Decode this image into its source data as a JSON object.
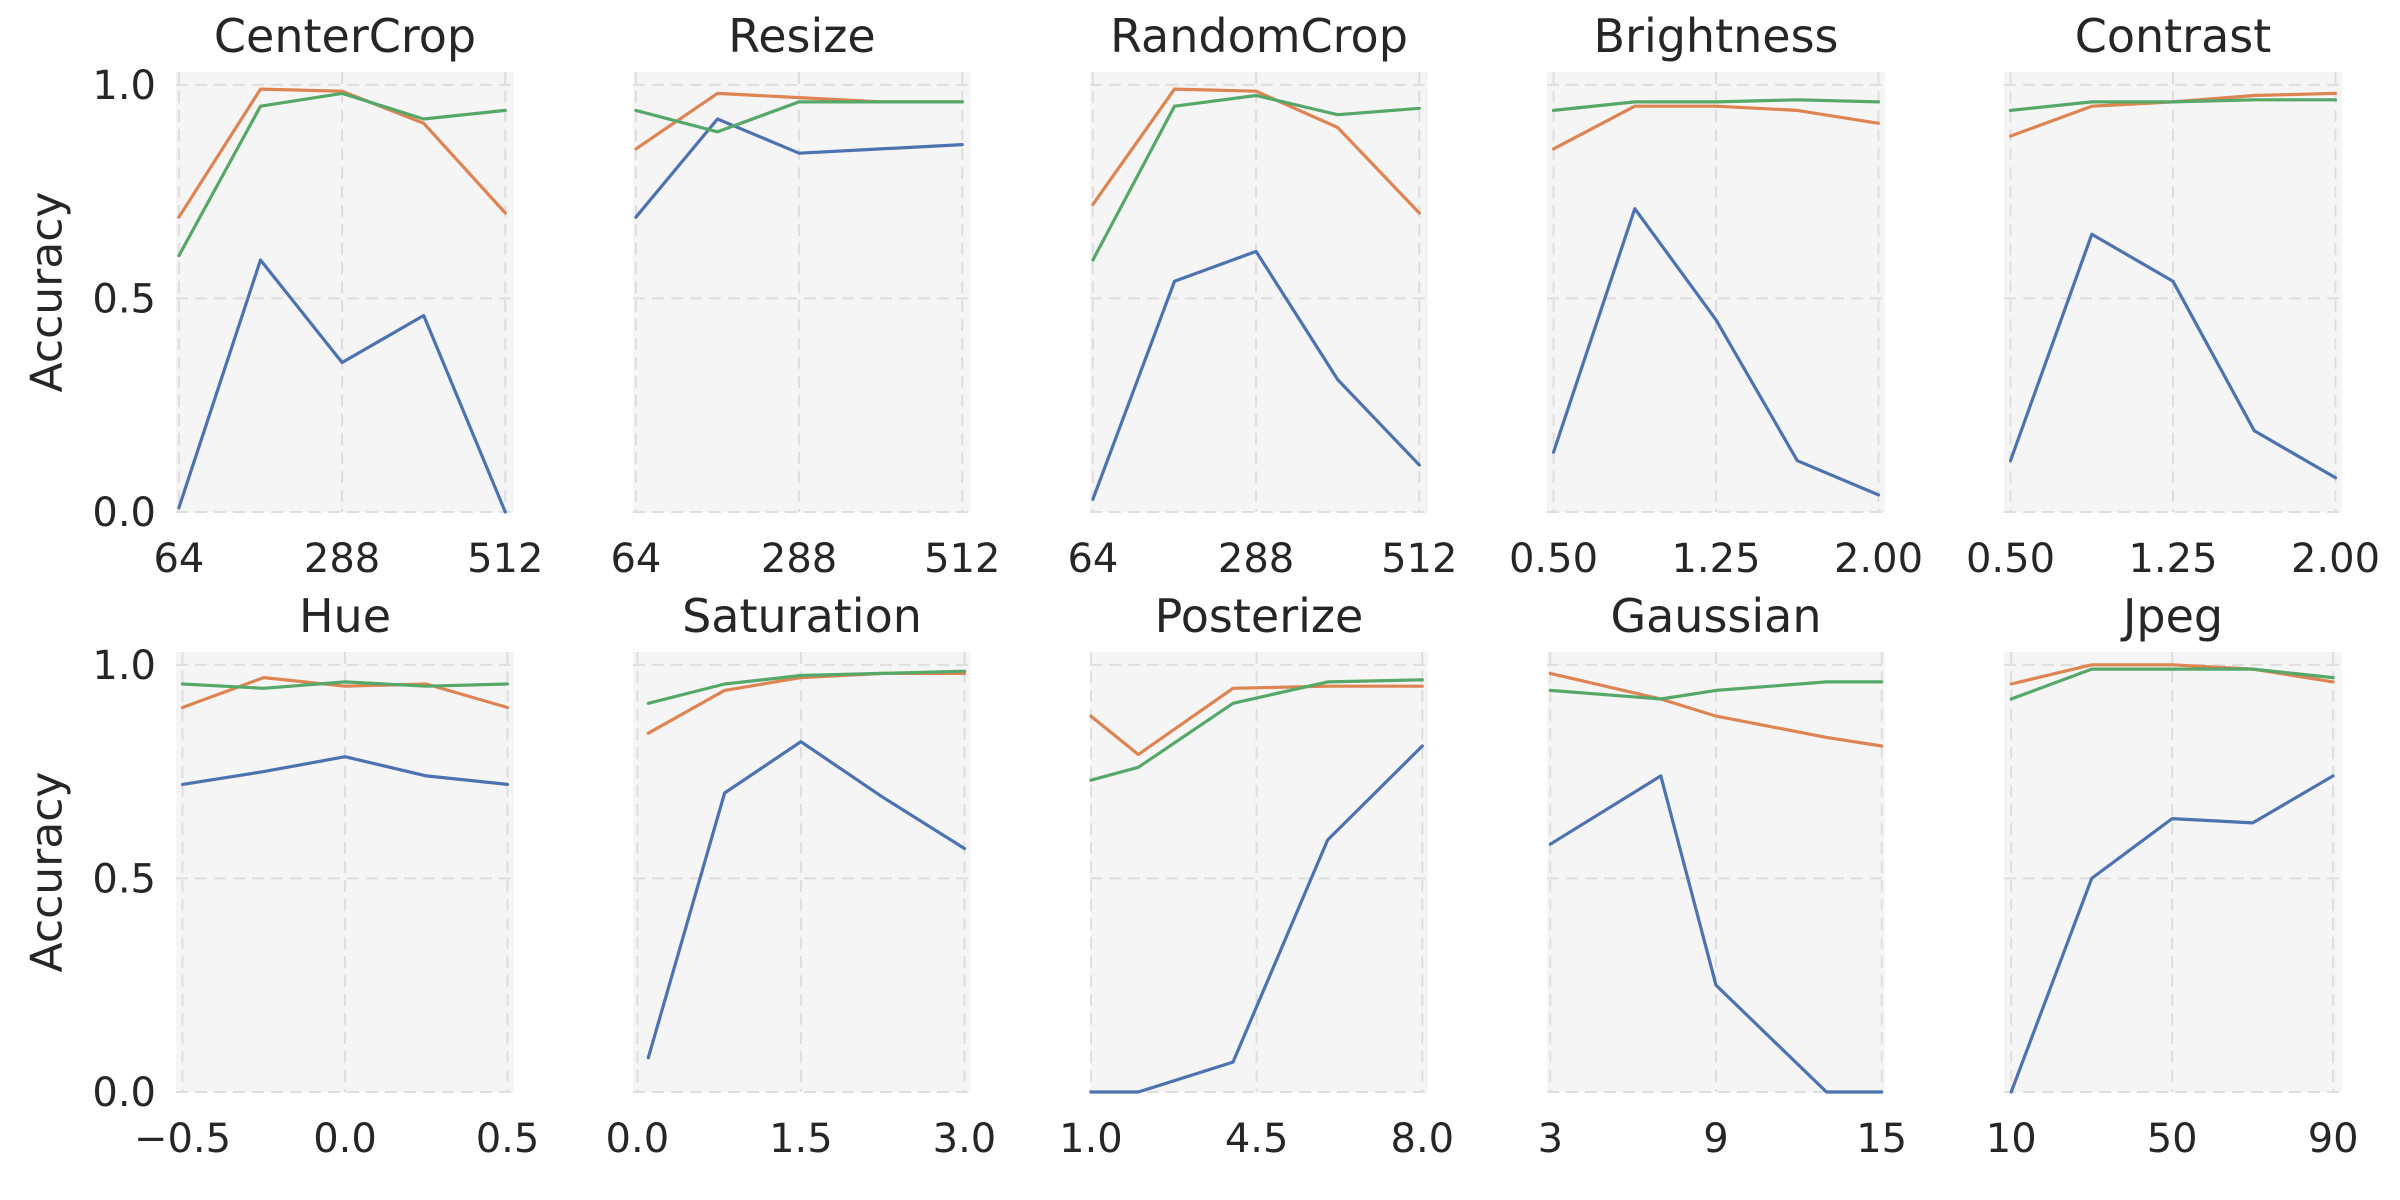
{
  "colors": {
    "series_blue": "#4c72b0",
    "series_orange": "#dd8452",
    "series_green": "#55a868"
  },
  "chart_data": [
    {
      "type": "line",
      "title": "CenterCrop",
      "ylabel": "Accuracy",
      "ylim": [
        0,
        1.03
      ],
      "xlim": [
        60,
        524
      ],
      "xticks": [
        64,
        288,
        512
      ],
      "xtick_labels": [
        "64",
        "288",
        "512"
      ],
      "yticks": [
        0,
        0.5,
        1.0
      ],
      "ytick_labels": [
        "0.0",
        "0.5",
        "1.0"
      ],
      "x": [
        64,
        176,
        288,
        400,
        512
      ],
      "series": [
        {
          "color": "#4c72b0",
          "values": [
            0.01,
            0.59,
            0.35,
            0.46,
            0.0
          ]
        },
        {
          "color": "#dd8452",
          "values": [
            0.69,
            0.99,
            0.985,
            0.91,
            0.7
          ]
        },
        {
          "color": "#55a868",
          "values": [
            0.6,
            0.95,
            0.98,
            0.92,
            0.94
          ]
        }
      ]
    },
    {
      "type": "line",
      "title": "Resize",
      "ylabel": "",
      "ylim": [
        0,
        1.03
      ],
      "xlim": [
        60,
        524
      ],
      "xticks": [
        64,
        288,
        512
      ],
      "xtick_labels": [
        "64",
        "288",
        "512"
      ],
      "yticks": [
        0,
        0.5,
        1.0
      ],
      "ytick_labels": [],
      "x": [
        64,
        176,
        288,
        400,
        512
      ],
      "series": [
        {
          "color": "#4c72b0",
          "values": [
            0.69,
            0.92,
            0.84,
            0.85,
            0.86
          ]
        },
        {
          "color": "#dd8452",
          "values": [
            0.85,
            0.98,
            0.97,
            0.96,
            0.96
          ]
        },
        {
          "color": "#55a868",
          "values": [
            0.94,
            0.89,
            0.96,
            0.96,
            0.96
          ]
        }
      ]
    },
    {
      "type": "line",
      "title": "RandomCrop",
      "ylabel": "",
      "ylim": [
        0,
        1.03
      ],
      "xlim": [
        60,
        524
      ],
      "xticks": [
        64,
        288,
        512
      ],
      "xtick_labels": [
        "64",
        "288",
        "512"
      ],
      "yticks": [
        0,
        0.5,
        1.0
      ],
      "ytick_labels": [],
      "x": [
        64,
        176,
        288,
        400,
        512
      ],
      "series": [
        {
          "color": "#4c72b0",
          "values": [
            0.03,
            0.54,
            0.61,
            0.31,
            0.11
          ]
        },
        {
          "color": "#dd8452",
          "values": [
            0.72,
            0.99,
            0.985,
            0.9,
            0.7
          ]
        },
        {
          "color": "#55a868",
          "values": [
            0.59,
            0.95,
            0.975,
            0.93,
            0.945
          ]
        }
      ]
    },
    {
      "type": "line",
      "title": "Brightness",
      "ylabel": "",
      "ylim": [
        0,
        1.03
      ],
      "xlim": [
        0.47,
        2.03
      ],
      "xticks": [
        0.5,
        1.25,
        2.0
      ],
      "xtick_labels": [
        "0.50",
        "1.25",
        "2.00"
      ],
      "yticks": [
        0,
        0.5,
        1.0
      ],
      "ytick_labels": [],
      "x": [
        0.5,
        0.875,
        1.25,
        1.625,
        2.0
      ],
      "series": [
        {
          "color": "#4c72b0",
          "values": [
            0.14,
            0.71,
            0.45,
            0.12,
            0.04
          ]
        },
        {
          "color": "#dd8452",
          "values": [
            0.85,
            0.95,
            0.95,
            0.94,
            0.91
          ]
        },
        {
          "color": "#55a868",
          "values": [
            0.94,
            0.96,
            0.96,
            0.965,
            0.96
          ]
        }
      ]
    },
    {
      "type": "line",
      "title": "Contrast",
      "ylabel": "",
      "ylim": [
        0,
        1.03
      ],
      "xlim": [
        0.47,
        2.03
      ],
      "xticks": [
        0.5,
        1.25,
        2.0
      ],
      "xtick_labels": [
        "0.50",
        "1.25",
        "2.00"
      ],
      "yticks": [
        0,
        0.5,
        1.0
      ],
      "ytick_labels": [],
      "x": [
        0.5,
        0.875,
        1.25,
        1.625,
        2.0
      ],
      "series": [
        {
          "color": "#4c72b0",
          "values": [
            0.12,
            0.65,
            0.54,
            0.19,
            0.08
          ]
        },
        {
          "color": "#dd8452",
          "values": [
            0.88,
            0.95,
            0.96,
            0.975,
            0.98
          ]
        },
        {
          "color": "#55a868",
          "values": [
            0.94,
            0.96,
            0.96,
            0.965,
            0.965
          ]
        }
      ]
    },
    {
      "type": "line",
      "title": "Hue",
      "ylabel": "Accuracy",
      "ylim": [
        0,
        1.03
      ],
      "xlim": [
        -0.52,
        0.52
      ],
      "xticks": [
        -0.5,
        0.0,
        0.5
      ],
      "xtick_labels": [
        "−0.5",
        "0.0",
        "0.5"
      ],
      "yticks": [
        0,
        0.5,
        1.0
      ],
      "ytick_labels": [
        "0.0",
        "0.5",
        "1.0"
      ],
      "x": [
        -0.5,
        -0.25,
        0.0,
        0.25,
        0.5
      ],
      "series": [
        {
          "color": "#4c72b0",
          "values": [
            0.72,
            0.75,
            0.785,
            0.74,
            0.72
          ]
        },
        {
          "color": "#dd8452",
          "values": [
            0.9,
            0.97,
            0.95,
            0.955,
            0.9
          ]
        },
        {
          "color": "#55a868",
          "values": [
            0.955,
            0.945,
            0.96,
            0.95,
            0.955
          ]
        }
      ]
    },
    {
      "type": "line",
      "title": "Saturation",
      "ylabel": "",
      "ylim": [
        0,
        1.03
      ],
      "xlim": [
        -0.04,
        3.06
      ],
      "xticks": [
        0.0,
        1.5,
        3.0
      ],
      "xtick_labels": [
        "0.0",
        "1.5",
        "3.0"
      ],
      "yticks": [
        0,
        0.5,
        1.0
      ],
      "ytick_labels": [],
      "x": [
        0.1,
        0.8,
        1.5,
        2.25,
        3.0
      ],
      "series": [
        {
          "color": "#4c72b0",
          "values": [
            0.08,
            0.7,
            0.82,
            0.69,
            0.57
          ]
        },
        {
          "color": "#dd8452",
          "values": [
            0.84,
            0.94,
            0.97,
            0.98,
            0.98
          ]
        },
        {
          "color": "#55a868",
          "values": [
            0.91,
            0.955,
            0.975,
            0.98,
            0.985
          ]
        }
      ]
    },
    {
      "type": "line",
      "title": "Posterize",
      "ylabel": "",
      "ylim": [
        0,
        1.03
      ],
      "xlim": [
        0.98,
        8.12
      ],
      "xticks": [
        1.0,
        4.5,
        8.0
      ],
      "xtick_labels": [
        "1.0",
        "4.5",
        "8.0"
      ],
      "yticks": [
        0,
        0.5,
        1.0
      ],
      "ytick_labels": [],
      "x": [
        1,
        2,
        4,
        6,
        8
      ],
      "series": [
        {
          "color": "#4c72b0",
          "values": [
            0.0,
            0.0,
            0.07,
            0.59,
            0.81
          ]
        },
        {
          "color": "#dd8452",
          "values": [
            0.88,
            0.79,
            0.945,
            0.95,
            0.95
          ]
        },
        {
          "color": "#55a868",
          "values": [
            0.73,
            0.76,
            0.91,
            0.96,
            0.965
          ]
        }
      ]
    },
    {
      "type": "line",
      "title": "Gaussian",
      "ylabel": "",
      "ylim": [
        0,
        1.03
      ],
      "xlim": [
        2.88,
        15.12
      ],
      "xticks": [
        3,
        9,
        15
      ],
      "xtick_labels": [
        "3",
        "9",
        "15"
      ],
      "yticks": [
        0,
        0.5,
        1.0
      ],
      "ytick_labels": [],
      "x": [
        3,
        7,
        9,
        13,
        15
      ],
      "series": [
        {
          "color": "#4c72b0",
          "values": [
            0.58,
            0.74,
            0.25,
            0.0,
            0.0
          ]
        },
        {
          "color": "#dd8452",
          "values": [
            0.98,
            0.92,
            0.88,
            0.83,
            0.81
          ]
        },
        {
          "color": "#55a868",
          "values": [
            0.94,
            0.92,
            0.94,
            0.96,
            0.96
          ]
        }
      ]
    },
    {
      "type": "line",
      "title": "Jpeg",
      "ylabel": "",
      "ylim": [
        0,
        1.03
      ],
      "xlim": [
        8.2,
        92.2
      ],
      "xticks": [
        10,
        50,
        90
      ],
      "xtick_labels": [
        "10",
        "50",
        "90"
      ],
      "yticks": [
        0,
        0.5,
        1.0
      ],
      "ytick_labels": [],
      "x": [
        10,
        30,
        50,
        70,
        90
      ],
      "series": [
        {
          "color": "#4c72b0",
          "values": [
            0.0,
            0.5,
            0.64,
            0.63,
            0.74
          ]
        },
        {
          "color": "#dd8452",
          "values": [
            0.955,
            1.0,
            1.0,
            0.99,
            0.96
          ]
        },
        {
          "color": "#55a868",
          "values": [
            0.92,
            0.99,
            0.99,
            0.99,
            0.97
          ]
        }
      ]
    }
  ]
}
